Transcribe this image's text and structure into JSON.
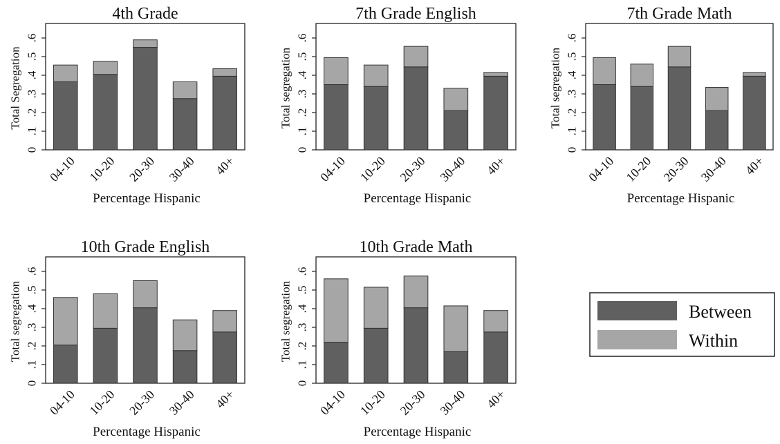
{
  "figure": {
    "legend": {
      "between_label": "Between",
      "within_label": "Within"
    },
    "colors": {
      "between": "#606060",
      "within": "#a6a6a6",
      "edge": "#333333",
      "axis": "#222222"
    }
  },
  "chart_data": [
    {
      "type": "bar",
      "stacked": true,
      "title": "4th Grade",
      "xlabel": "Percentage Hispanic",
      "ylabel": "Total Segregation",
      "categories": [
        "04-10",
        "10-20",
        "20-30",
        "30-40",
        "40+"
      ],
      "ylim": [
        0,
        0.6
      ],
      "yticks": [
        "0",
        ".1",
        ".2",
        ".3",
        ".4",
        ".5",
        ".6"
      ],
      "series": [
        {
          "name": "Between",
          "values": [
            0.365,
            0.405,
            0.55,
            0.275,
            0.395
          ]
        },
        {
          "name": "Within",
          "values": [
            0.09,
            0.07,
            0.04,
            0.09,
            0.04
          ]
        }
      ]
    },
    {
      "type": "bar",
      "stacked": true,
      "title": "7th Grade English",
      "xlabel": "Percentage Hispanic",
      "ylabel": "Total segregation",
      "categories": [
        "04-10",
        "10-20",
        "20-30",
        "30-40",
        "40+"
      ],
      "ylim": [
        0,
        0.6
      ],
      "yticks": [
        "0",
        ".1",
        ".2",
        ".3",
        ".4",
        ".5",
        ".6"
      ],
      "series": [
        {
          "name": "Between",
          "values": [
            0.35,
            0.34,
            0.445,
            0.21,
            0.395
          ]
        },
        {
          "name": "Within",
          "values": [
            0.145,
            0.115,
            0.11,
            0.12,
            0.02
          ]
        }
      ]
    },
    {
      "type": "bar",
      "stacked": true,
      "title": "7th Grade Math",
      "xlabel": "Percentage Hispanic",
      "ylabel": "Total segregation",
      "categories": [
        "04-10",
        "10-20",
        "20-30",
        "30-40",
        "40+"
      ],
      "ylim": [
        0,
        0.6
      ],
      "yticks": [
        "0",
        ".1",
        ".2",
        ".3",
        ".4",
        ".5",
        ".6"
      ],
      "series": [
        {
          "name": "Between",
          "values": [
            0.35,
            0.34,
            0.445,
            0.21,
            0.395
          ]
        },
        {
          "name": "Within",
          "values": [
            0.145,
            0.12,
            0.11,
            0.125,
            0.02
          ]
        }
      ]
    },
    {
      "type": "bar",
      "stacked": true,
      "title": "10th Grade English",
      "xlabel": "Percentage Hispanic",
      "ylabel": "Total segregation",
      "categories": [
        "04-10",
        "10-20",
        "20-30",
        "30-40",
        "40+"
      ],
      "ylim": [
        0,
        0.6
      ],
      "yticks": [
        "0",
        ".1",
        ".2",
        ".3",
        ".4",
        ".5",
        ".6"
      ],
      "series": [
        {
          "name": "Between",
          "values": [
            0.205,
            0.295,
            0.405,
            0.175,
            0.275
          ]
        },
        {
          "name": "Within",
          "values": [
            0.255,
            0.185,
            0.145,
            0.165,
            0.115
          ]
        }
      ]
    },
    {
      "type": "bar",
      "stacked": true,
      "title": "10th Grade Math",
      "xlabel": "Percentage Hispanic",
      "ylabel": "Total segregation",
      "categories": [
        "04-10",
        "10-20",
        "20-30",
        "30-40",
        "40+"
      ],
      "ylim": [
        0,
        0.6
      ],
      "yticks": [
        "0",
        ".1",
        ".2",
        ".3",
        ".4",
        ".5",
        ".6"
      ],
      "series": [
        {
          "name": "Between",
          "values": [
            0.22,
            0.295,
            0.405,
            0.17,
            0.275
          ]
        },
        {
          "name": "Within",
          "values": [
            0.34,
            0.22,
            0.17,
            0.245,
            0.115
          ]
        }
      ]
    }
  ]
}
